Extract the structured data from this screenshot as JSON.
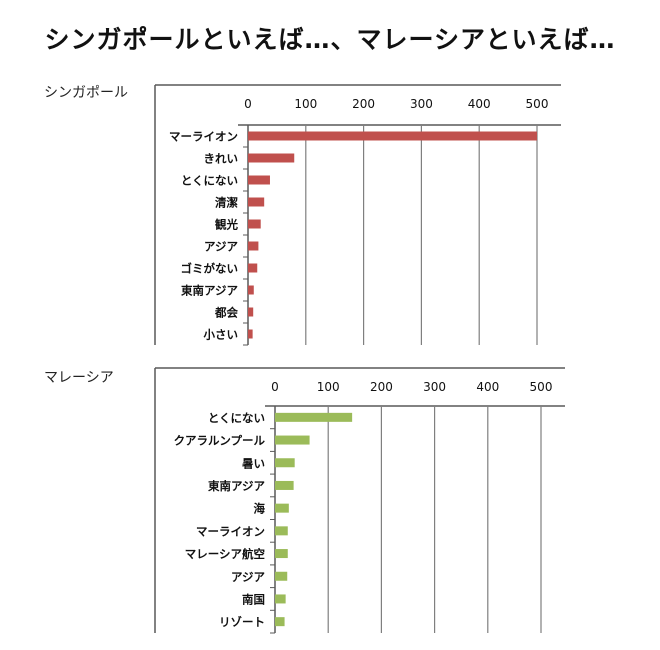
{
  "page": {
    "title": "シンガポールといえば…、マレーシアといえば…"
  },
  "colors": {
    "singapore_bar": "#c0504d",
    "malaysia_bar": "#9bbb59",
    "grid": "#7f7f7f",
    "axis": "#595959"
  },
  "chart_data": [
    {
      "type": "bar",
      "orientation": "horizontal",
      "label": "シンガポール",
      "categories": [
        "マーライオン",
        "きれい",
        "とくにない",
        "清潔",
        "観光",
        "アジア",
        "ゴミがない",
        "東南アジア",
        "都会",
        "小さい"
      ],
      "values": [
        500,
        80,
        38,
        28,
        22,
        18,
        16,
        10,
        9,
        8
      ],
      "xlim": [
        0,
        500
      ],
      "xticks": [
        "0",
        "100",
        "200",
        "300",
        "400",
        "500"
      ],
      "x_axis_position": "top",
      "grid": true,
      "legend": "none"
    },
    {
      "type": "bar",
      "orientation": "horizontal",
      "label": "マレーシア",
      "categories": [
        "とくにない",
        "クアラルンプール",
        "暑い",
        "東南アジア",
        "海",
        "マーライオン",
        "マレーシア航空",
        "アジア",
        "南国",
        "リゾート"
      ],
      "values": [
        145,
        65,
        37,
        35,
        26,
        24,
        24,
        23,
        20,
        18
      ],
      "xlim": [
        0,
        500
      ],
      "xticks": [
        "0",
        "100",
        "200",
        "300",
        "400",
        "500"
      ],
      "x_axis_position": "top",
      "grid": true,
      "legend": "none"
    }
  ]
}
